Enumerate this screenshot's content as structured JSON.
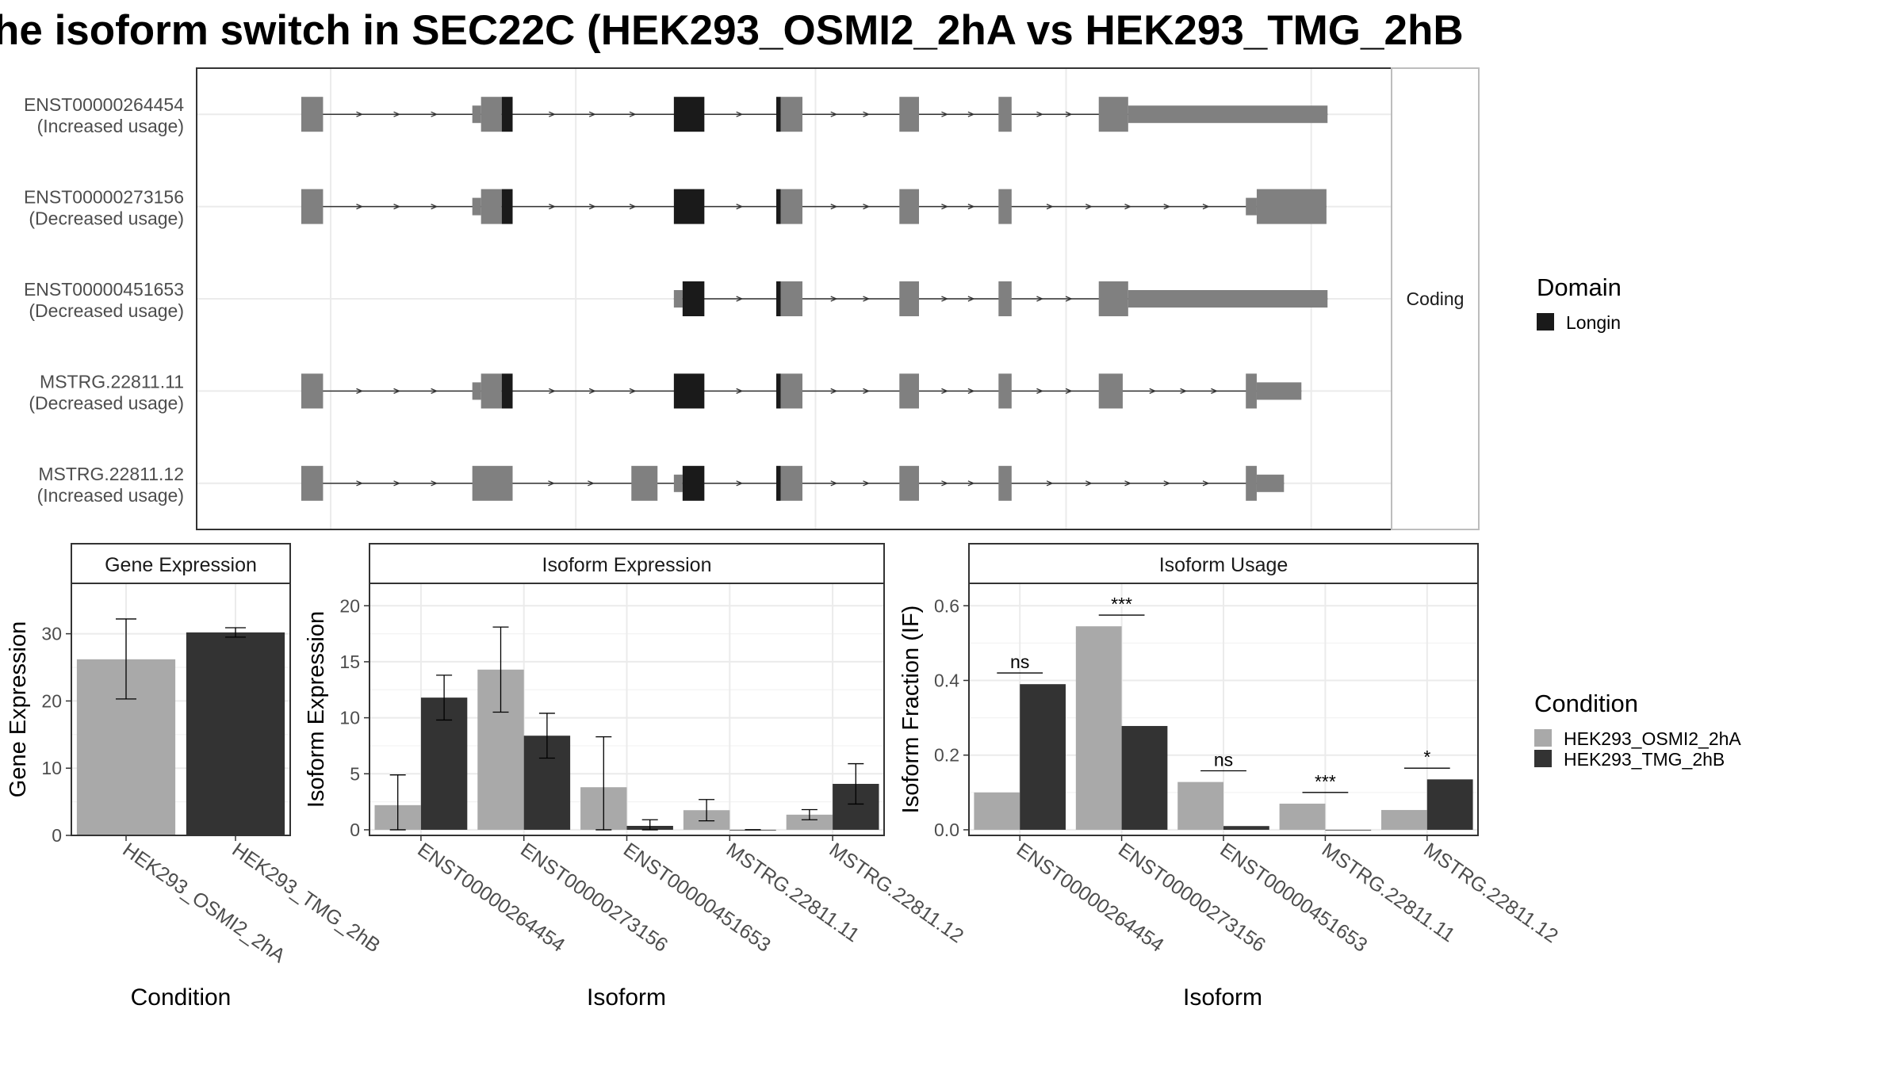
{
  "title": "he isoform switch in SEC22C (HEK293_OSMI2_2hA vs HEK293_TMG_2hB",
  "colors": {
    "exon": "#808080",
    "domain": "#1a1a1a",
    "cond_a": "#a9a9a9",
    "cond_b": "#333333",
    "panel_border": "#333333",
    "strip_border": "#bdbdbd",
    "grid": "#ebebeb",
    "strip_bg": "#ffffff"
  },
  "transcript_plot": {
    "strip_label": "Coding",
    "legend_title": "Domain",
    "legend_items": [
      {
        "label": "Longin",
        "color": "#1a1a1a"
      }
    ],
    "genomic_range": [
      0,
      1000
    ],
    "transcripts": [
      {
        "id": "ENST00000264454",
        "usage": "(Increased usage)",
        "exons": [
          [
            48,
            68,
            "n"
          ],
          [
            205,
            213,
            "s"
          ],
          [
            213,
            232,
            "n"
          ],
          [
            232,
            242,
            "d"
          ],
          [
            390,
            418,
            "d"
          ],
          [
            484,
            488,
            "d"
          ],
          [
            488,
            508,
            "n"
          ],
          [
            597,
            615,
            "n"
          ],
          [
            688,
            700,
            "n"
          ],
          [
            780,
            807,
            "n"
          ],
          [
            807,
            990,
            "s"
          ]
        ]
      },
      {
        "id": "ENST00000273156",
        "usage": "(Decreased usage)",
        "exons": [
          [
            48,
            68,
            "n"
          ],
          [
            205,
            213,
            "s"
          ],
          [
            213,
            232,
            "n"
          ],
          [
            232,
            242,
            "d"
          ],
          [
            390,
            418,
            "d"
          ],
          [
            484,
            488,
            "d"
          ],
          [
            488,
            508,
            "n"
          ],
          [
            597,
            615,
            "n"
          ],
          [
            688,
            700,
            "n"
          ],
          [
            915,
            925,
            "s"
          ],
          [
            925,
            989,
            "n"
          ]
        ]
      },
      {
        "id": "ENST00000451653",
        "usage": "(Decreased usage)",
        "exons": [
          [
            390,
            398,
            "s"
          ],
          [
            398,
            418,
            "d"
          ],
          [
            484,
            488,
            "d"
          ],
          [
            488,
            508,
            "n"
          ],
          [
            597,
            615,
            "n"
          ],
          [
            688,
            700,
            "n"
          ],
          [
            780,
            807,
            "n"
          ],
          [
            807,
            990,
            "s"
          ]
        ]
      },
      {
        "id": "MSTRG.22811.11",
        "usage": "(Decreased usage)",
        "exons": [
          [
            48,
            68,
            "n"
          ],
          [
            205,
            213,
            "s"
          ],
          [
            213,
            232,
            "n"
          ],
          [
            232,
            242,
            "d"
          ],
          [
            390,
            418,
            "d"
          ],
          [
            484,
            488,
            "d"
          ],
          [
            488,
            508,
            "n"
          ],
          [
            597,
            615,
            "n"
          ],
          [
            688,
            700,
            "n"
          ],
          [
            780,
            802,
            "n"
          ],
          [
            915,
            925,
            "n"
          ],
          [
            925,
            966,
            "s"
          ]
        ]
      },
      {
        "id": "MSTRG.22811.12",
        "usage": "(Increased usage)",
        "exons": [
          [
            48,
            68,
            "n"
          ],
          [
            205,
            242,
            "n"
          ],
          [
            351,
            375,
            "n"
          ],
          [
            390,
            398,
            "s"
          ],
          [
            398,
            418,
            "d"
          ],
          [
            484,
            488,
            "d"
          ],
          [
            488,
            508,
            "n"
          ],
          [
            597,
            615,
            "n"
          ],
          [
            688,
            700,
            "n"
          ],
          [
            915,
            925,
            "n"
          ],
          [
            925,
            950,
            "s"
          ]
        ]
      }
    ]
  },
  "chart_data": [
    {
      "type": "bar",
      "strip_title": "Gene Expression",
      "xlabel": "Condition",
      "ylabel": "Gene Expression",
      "categories": [
        "HEK293_OSMI2_2hA",
        "HEK293_TMG_2hB"
      ],
      "values": [
        26.2,
        30.2
      ],
      "errors": [
        [
          20.3,
          32.2
        ],
        [
          29.5,
          30.9
        ]
      ],
      "ylim": [
        0,
        37.5
      ],
      "yticks": [
        0,
        10,
        20,
        30
      ]
    },
    {
      "type": "bar",
      "strip_title": "Isoform Expression",
      "xlabel": "Isoform",
      "ylabel": "Isoform Expression",
      "categories": [
        "ENST00000264454",
        "ENST00000273156",
        "ENST00000451653",
        "MSTRG.22811.11",
        "MSTRG.22811.12"
      ],
      "series": [
        {
          "name": "HEK293_OSMI2_2hA",
          "values": [
            2.2,
            14.3,
            3.8,
            1.75,
            1.35
          ],
          "errors": [
            [
              0,
              4.9
            ],
            [
              10.5,
              18.1
            ],
            [
              0,
              8.3
            ],
            [
              0.8,
              2.7
            ],
            [
              0.9,
              1.8
            ]
          ]
        },
        {
          "name": "HEK293_TMG_2hB",
          "values": [
            11.8,
            8.4,
            0.35,
            0,
            4.1
          ],
          "errors": [
            [
              9.8,
              13.8
            ],
            [
              6.4,
              10.4
            ],
            [
              0,
              0.9
            ],
            [
              0,
              0
            ],
            [
              2.3,
              5.9
            ]
          ]
        }
      ],
      "ylim": [
        -0.5,
        22
      ],
      "yticks": [
        0,
        5,
        10,
        15,
        20
      ]
    },
    {
      "type": "bar",
      "strip_title": "Isoform Usage",
      "xlabel": "Isoform",
      "ylabel": "Isoform Fraction (IF)",
      "categories": [
        "ENST00000264454",
        "ENST00000273156",
        "ENST00000451653",
        "MSTRG.22811.11",
        "MSTRG.22811.12"
      ],
      "series": [
        {
          "name": "HEK293_OSMI2_2hA",
          "values": [
            0.1,
            0.545,
            0.128,
            0.07,
            0.053
          ]
        },
        {
          "name": "HEK293_TMG_2hB",
          "values": [
            0.39,
            0.278,
            0.01,
            0,
            0.135
          ]
        }
      ],
      "significance": [
        "ns",
        "***",
        "ns",
        "***",
        "*"
      ],
      "sig_y": [
        0.42,
        0.575,
        0.158,
        0.1,
        0.165
      ],
      "ylim": [
        -0.015,
        0.66
      ],
      "yticks": [
        0.0,
        0.2,
        0.4,
        0.6
      ],
      "ytick_labels": [
        "0.0",
        "0.2",
        "0.4",
        "0.6"
      ]
    }
  ],
  "condition_legend": {
    "title": "Condition",
    "items": [
      {
        "label": "HEK293_OSMI2_2hA",
        "color": "#a9a9a9"
      },
      {
        "label": "HEK293_TMG_2hB",
        "color": "#333333"
      }
    ]
  }
}
